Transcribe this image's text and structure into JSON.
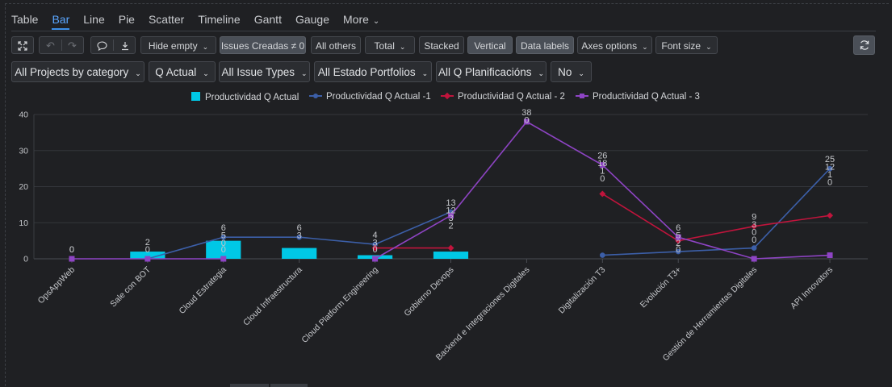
{
  "tabs": [
    {
      "label": "Table",
      "active": false
    },
    {
      "label": "Bar",
      "active": true
    },
    {
      "label": "Line",
      "active": false
    },
    {
      "label": "Pie",
      "active": false
    },
    {
      "label": "Scatter",
      "active": false
    },
    {
      "label": "Timeline",
      "active": false
    },
    {
      "label": "Gantt",
      "active": false
    },
    {
      "label": "Gauge",
      "active": false
    },
    {
      "label": "More",
      "active": false
    }
  ],
  "toolbar": {
    "expand_icon": "expand-icon",
    "undo_icon": "undo-icon",
    "redo_icon": "redo-icon",
    "comment_icon": "comment-icon",
    "download_icon": "download-icon",
    "hide_empty": "Hide empty",
    "issues_creadas": "Issues Creadas ≠ 0",
    "all_others": "All others",
    "total": "Total",
    "stacked": "Stacked",
    "vertical": "Vertical",
    "data_labels": "Data labels",
    "axes_options": "Axes options",
    "font_size": "Font size",
    "refresh_icon": "refresh-icon"
  },
  "filters": {
    "projects": "All Projects by category",
    "quarter": "Q Actual",
    "issue_types": "All Issue Types",
    "estado": "All Estado Portfolios",
    "planificaciones": "All Q Planificacións",
    "no": "No"
  },
  "colors": {
    "bar": "#00c8e6",
    "q1": "#3c5fa8",
    "q2": "#c0143c",
    "q3": "#8e44c4"
  },
  "chart_data": {
    "type": "bar",
    "categories": [
      "OpsAppWeb",
      "Sale con BOT",
      "Cloud Estrategia",
      "Cloud Infraestructura",
      "Cloud Platform Engineering",
      "Gobierno Devops",
      "Backend e Integraciones Digitales",
      "Digitalización T3",
      "Evolución T3+",
      "Gestión de Herramientas Digitales",
      "API Innovators"
    ],
    "series": [
      {
        "name": "Productividad Q Actual",
        "type": "bar",
        "values": [
          0,
          2,
          5,
          3,
          1,
          2,
          0,
          null,
          null,
          null,
          null
        ]
      },
      {
        "name": "Productividad Q Actual -1",
        "type": "line",
        "values": [
          null,
          0,
          6,
          6,
          4,
          13,
          null,
          1,
          2,
          3,
          25
        ]
      },
      {
        "name": "Productividad Q Actual - 2",
        "type": "line",
        "values": [
          null,
          null,
          null,
          null,
          3,
          3,
          null,
          18,
          5,
          9,
          12
        ]
      },
      {
        "name": "Productividad Q Actual - 3",
        "type": "line",
        "values": [
          0,
          0,
          0,
          null,
          0,
          12,
          38,
          26,
          6,
          0,
          1
        ]
      }
    ],
    "data_labels": [
      {
        "category_index": 0,
        "labels": [
          "0",
          "0"
        ]
      },
      {
        "category_index": 1,
        "labels": [
          "2",
          "0"
        ]
      },
      {
        "category_index": 2,
        "labels": [
          "6",
          "5",
          "0",
          "0"
        ]
      },
      {
        "category_index": 3,
        "labels": [
          "6",
          "3"
        ]
      },
      {
        "category_index": 4,
        "labels": [
          "4",
          "3",
          "0"
        ]
      },
      {
        "category_index": 5,
        "labels": [
          "13",
          "12",
          "3",
          "2"
        ]
      },
      {
        "category_index": 6,
        "labels": [
          "38",
          "0"
        ]
      },
      {
        "category_index": 7,
        "labels": [
          "26",
          "18",
          "1",
          "0"
        ]
      },
      {
        "category_index": 8,
        "labels": [
          "6",
          "5",
          "2",
          "0"
        ]
      },
      {
        "category_index": 9,
        "labels": [
          "9",
          "3",
          "0",
          "0"
        ]
      },
      {
        "category_index": 10,
        "labels": [
          "25",
          "12",
          "1",
          "0"
        ]
      }
    ],
    "yticks": [
      0,
      10,
      20,
      30,
      40
    ],
    "ylim": [
      0,
      40
    ],
    "grid": true,
    "legend": "top-center",
    "xlabel": "",
    "ylabel": "",
    "title": ""
  }
}
